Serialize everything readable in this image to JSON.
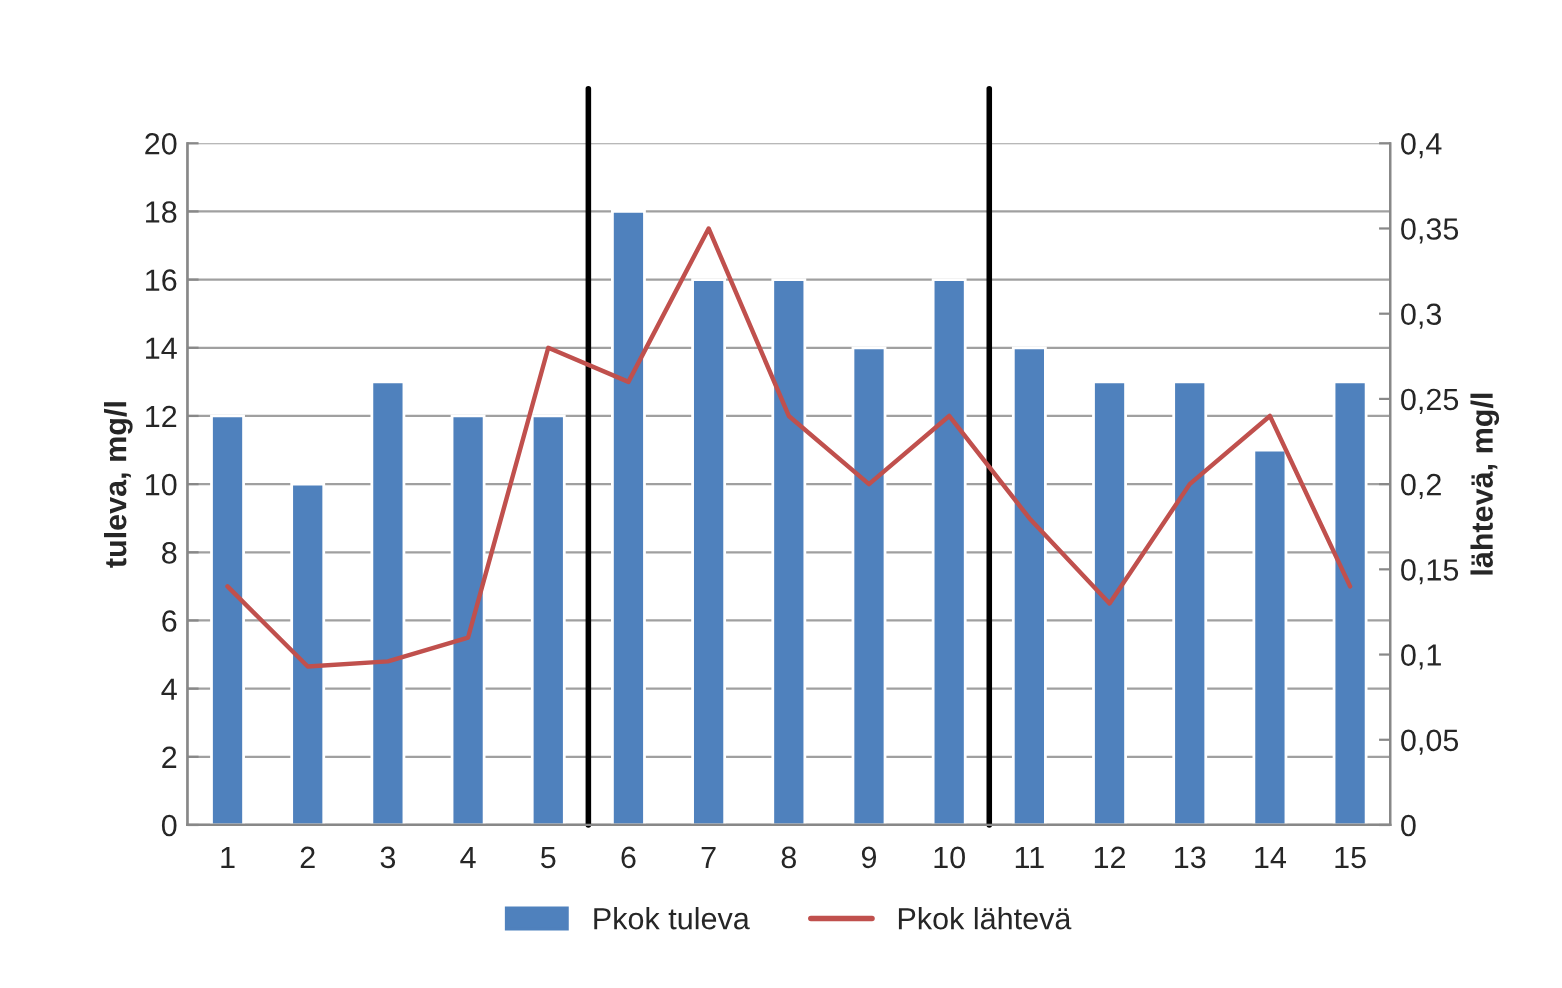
{
  "chart_data": {
    "type": "bar",
    "x": [
      1,
      2,
      3,
      4,
      5,
      6,
      7,
      8,
      9,
      10,
      11,
      12,
      13,
      14,
      15
    ],
    "xlim": [
      0.5,
      15.5
    ],
    "xticks": [
      1,
      2,
      3,
      4,
      5,
      6,
      7,
      8,
      9,
      10,
      11,
      12,
      13,
      14,
      15
    ],
    "ylabel": "tuleva, mg/l",
    "y2label": "lähtevä, mg/l",
    "ylim": [
      0,
      20
    ],
    "yticks": [
      0,
      2,
      4,
      6,
      8,
      10,
      12,
      14,
      16,
      18,
      20
    ],
    "y2lim": [
      0,
      0.4
    ],
    "y2ticks": [
      {
        "value": 0,
        "label": "0"
      },
      {
        "value": 0.05,
        "label": "0,05"
      },
      {
        "value": 0.1,
        "label": "0,1"
      },
      {
        "value": 0.15,
        "label": "0,15"
      },
      {
        "value": 0.2,
        "label": "0,2"
      },
      {
        "value": 0.25,
        "label": "0,25"
      },
      {
        "value": 0.3,
        "label": "0,3"
      },
      {
        "value": 0.35,
        "label": "0,35"
      },
      {
        "value": 0.4,
        "label": "0,4"
      }
    ],
    "series": [
      {
        "name": "Pkok tuleva",
        "color": "#4f81bd",
        "values": [
          12,
          10,
          13,
          12,
          12,
          18,
          16,
          16,
          14,
          16,
          14,
          13,
          13,
          11,
          13
        ]
      },
      {
        "name": "Pkok lähtevä",
        "type": "line",
        "axis": "y2",
        "color": "#c0504d",
        "values": [
          0.14,
          0.093,
          0.096,
          0.11,
          0.28,
          0.26,
          0.35,
          0.24,
          0.2,
          0.24,
          0.18,
          0.13,
          0.2,
          0.24,
          0.14
        ]
      }
    ],
    "ref_lines": [
      {
        "axis": "x",
        "value": 5.5,
        "color": "#000000"
      },
      {
        "axis": "x",
        "value": 10.5,
        "color": "#000000"
      }
    ],
    "grid": "y",
    "legend": "bottom",
    "marker": "none"
  }
}
